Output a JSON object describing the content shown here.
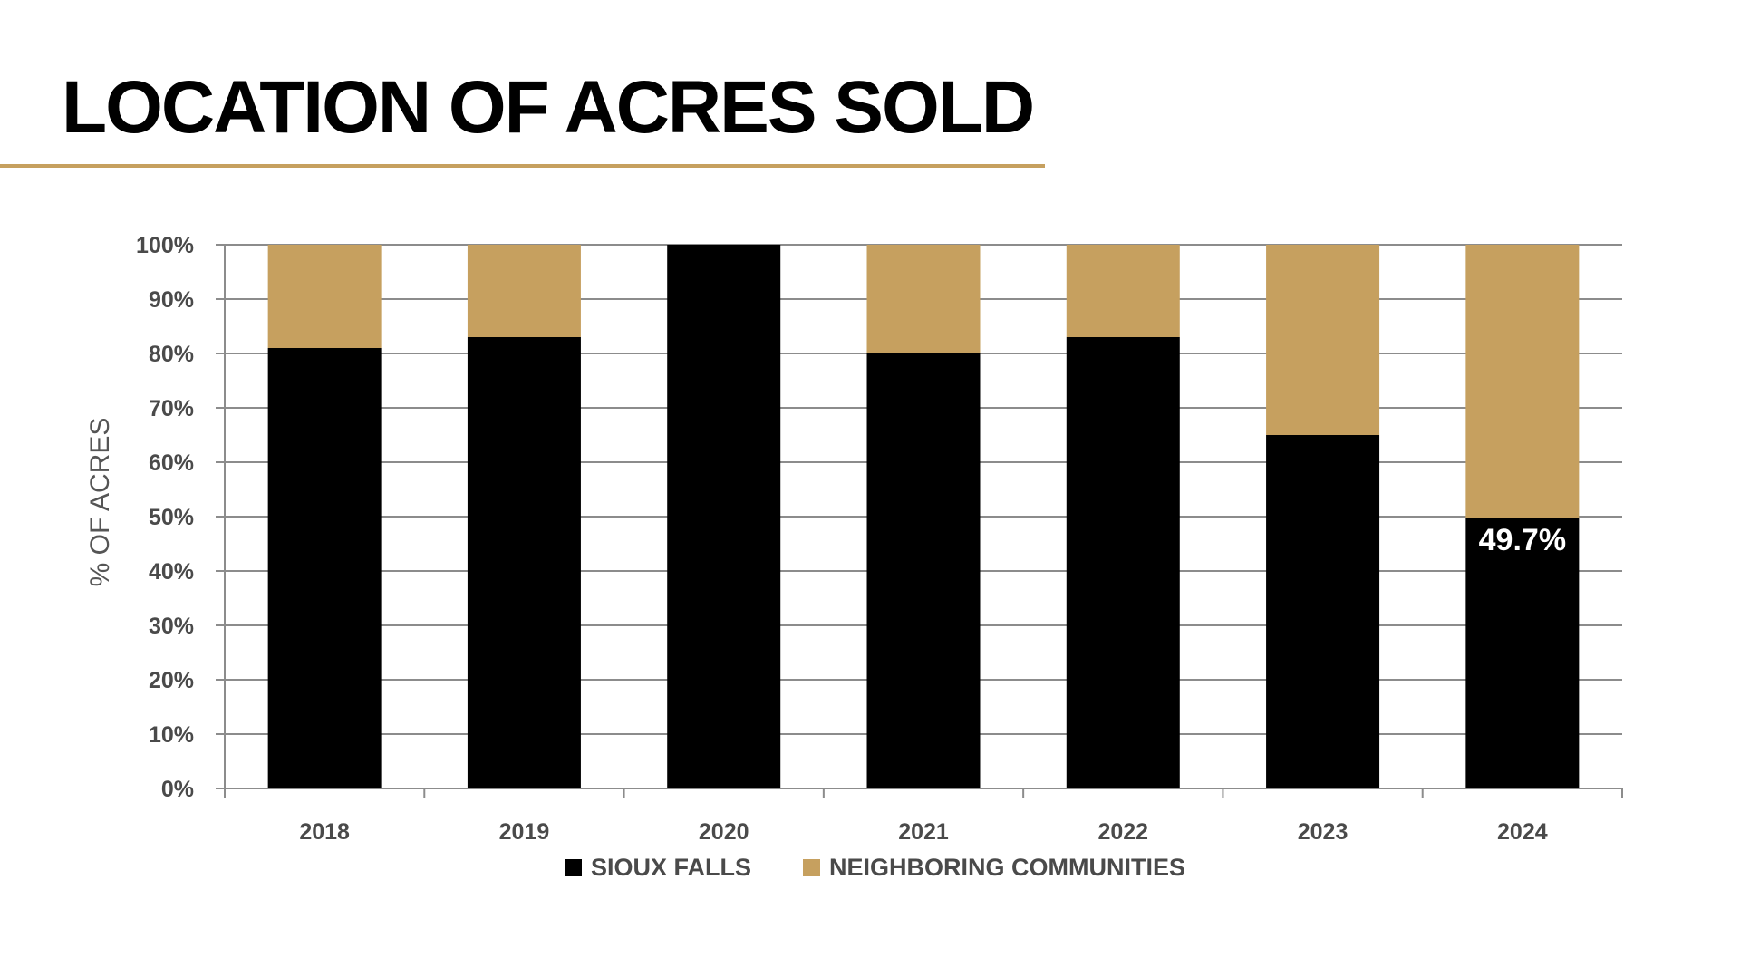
{
  "title": "LOCATION OF ACRES SOLD",
  "colors": {
    "sioux_falls": "#000000",
    "neighboring": "#c6a05f",
    "accent_rule": "#c6a05f",
    "grid": "#8c8c8c"
  },
  "chart_data": {
    "type": "bar",
    "stacked": true,
    "title": "LOCATION OF ACRES SOLD",
    "xlabel": "",
    "ylabel": "% OF ACRES",
    "ylim": [
      0,
      100
    ],
    "yticks": [
      "0%",
      "10%",
      "20%",
      "30%",
      "40%",
      "50%",
      "60%",
      "70%",
      "80%",
      "90%",
      "100%"
    ],
    "categories": [
      "2018",
      "2019",
      "2020",
      "2021",
      "2022",
      "2023",
      "2024"
    ],
    "series": [
      {
        "name": "SIOUX FALLS",
        "values": [
          81,
          83,
          100,
          80,
          83,
          65,
          49.7
        ]
      },
      {
        "name": "NEIGHBORING COMMUNITIES",
        "values": [
          19,
          17,
          0,
          20,
          17,
          35,
          50.3
        ]
      }
    ],
    "data_labels": [
      {
        "category": "2024",
        "series": "SIOUX FALLS",
        "text": "49.7%"
      }
    ],
    "grid": true,
    "legend_position": "bottom"
  }
}
